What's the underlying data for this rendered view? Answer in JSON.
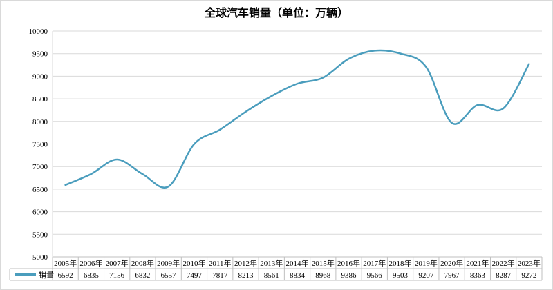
{
  "chart_data": {
    "type": "line",
    "title": "全球汽车销量（单位：万辆）",
    "categories": [
      "2005年",
      "2006年",
      "2007年",
      "2008年",
      "2009年",
      "2010年",
      "2011年",
      "2012年",
      "2013年",
      "2014年",
      "2015年",
      "2016年",
      "2017年",
      "2018年",
      "2019年",
      "2020年",
      "2021年",
      "2022年",
      "2023年"
    ],
    "series": [
      {
        "name": "销量",
        "color": "#4a9dbd",
        "values": [
          6592,
          6835,
          7156,
          6832,
          6557,
          7497,
          7817,
          8213,
          8561,
          8834,
          8968,
          9386,
          9566,
          9503,
          9207,
          7967,
          8363,
          8287,
          9272
        ]
      }
    ],
    "y_ticks": [
      "5000",
      "5500",
      "6000",
      "6500",
      "7000",
      "7500",
      "8000",
      "8500",
      "9000",
      "9500",
      "10000"
    ],
    "ylim": [
      5000,
      10000
    ],
    "grid": true,
    "legend": "bottom-left (data table)"
  }
}
